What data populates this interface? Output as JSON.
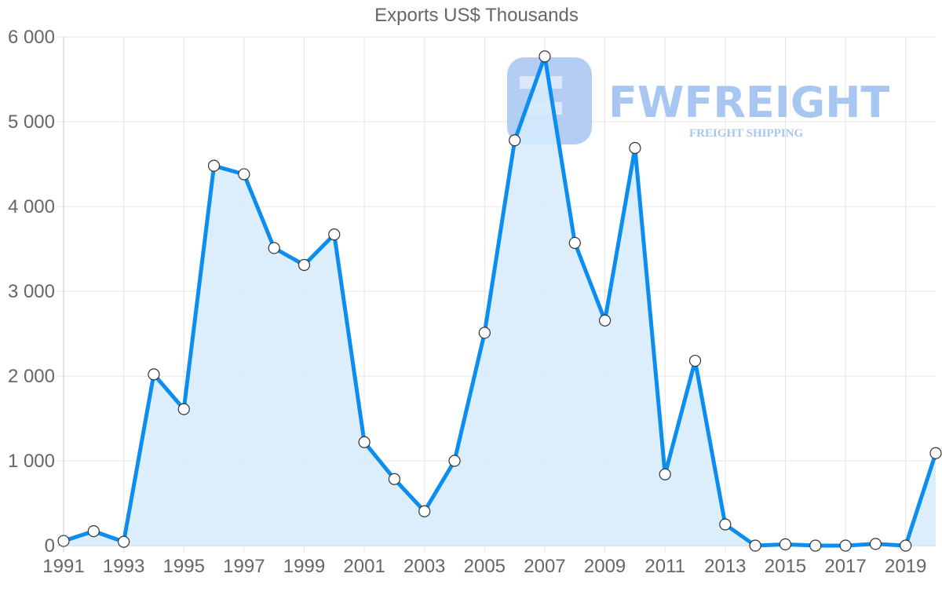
{
  "chart_data": {
    "type": "line",
    "title": "Exports US$ Thousands",
    "xlabel": "",
    "ylabel": "",
    "x": [
      1991,
      1992,
      1993,
      1994,
      1995,
      1996,
      1997,
      1998,
      1999,
      2000,
      2001,
      2002,
      2003,
      2004,
      2005,
      2006,
      2007,
      2008,
      2009,
      2010,
      2011,
      2012,
      2013,
      2014,
      2015,
      2016,
      2017,
      2018,
      2019,
      2020
    ],
    "series": [
      {
        "name": "Exports US$ Thousands",
        "values": [
          55,
          170,
          45,
          2020,
          1610,
          4480,
          4380,
          3510,
          3310,
          3670,
          1220,
          785,
          405,
          1000,
          2510,
          4780,
          5770,
          3570,
          2655,
          4690,
          840,
          2180,
          250,
          0,
          15,
          0,
          0,
          20,
          0,
          1090
        ],
        "color": "#0b8ef0",
        "fill": "#d6ebfb",
        "area": true
      }
    ],
    "ylim": [
      0,
      6000
    ],
    "yticks": [
      0,
      1000,
      2000,
      3000,
      4000,
      5000,
      6000
    ],
    "ytick_labels": [
      "0",
      "1 000",
      "2 000",
      "3 000",
      "4 000",
      "5 000",
      "6 000"
    ],
    "xtick_labels": [
      "1991",
      "1993",
      "1995",
      "1997",
      "1999",
      "2001",
      "2003",
      "2005",
      "2007",
      "2009",
      "2011",
      "2013",
      "2015",
      "2017",
      "2019"
    ],
    "grid": true,
    "legend": null
  },
  "watermark": {
    "brand": "FWFREIGHT",
    "tagline": "FREIGHT SHIPPING",
    "color": "#a8c6f2"
  }
}
